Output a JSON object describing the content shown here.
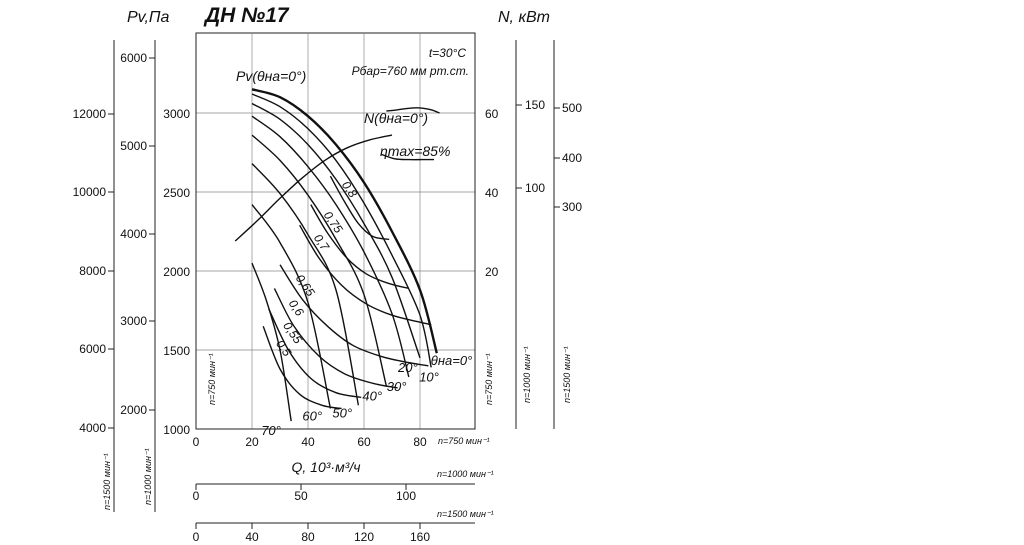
{
  "chart_data": {
    "type": "line",
    "title": "ДН №17",
    "conditions": [
      "t=30°C",
      "Рбар=760 мм рт.ст."
    ],
    "pv_unit_label": "Pv,Па",
    "power_unit_label": "N, кВт",
    "xlabel": "Q, 10³·м³/ч",
    "eta_label": "ηmax=85%",
    "pv_curve_label": "Pv(θна=0°)",
    "n_curve_label": "N(θна=0°)",
    "main_axis": {
      "pv_ticks": [
        "1000",
        "1500",
        "2000",
        "2500",
        "3000"
      ],
      "pv_range": [
        1000,
        3200
      ],
      "n_ticks": [
        "20",
        "40",
        "60"
      ],
      "speed_label": "n=750 мин⁻¹"
    },
    "pv_1000_axis": {
      "ticks": [
        "2000",
        "3000",
        "4000",
        "5000",
        "6000"
      ],
      "speed_label": "n=1000 мин⁻¹"
    },
    "pv_1500_axis": {
      "ticks": [
        "4000",
        "6000",
        "8000",
        "10000",
        "12000"
      ],
      "speed_label": "n=1500 мин⁻¹"
    },
    "n_1000_axis": {
      "ticks": [
        "100",
        "150"
      ],
      "speed_label": "n=1000 мин⁻¹"
    },
    "n_1500_axis": {
      "ticks": [
        "300",
        "400",
        "500"
      ],
      "speed_label": "n=1500 мин⁻¹"
    },
    "q_750_axis": {
      "ticks": [
        "0",
        "20",
        "40",
        "60",
        "80"
      ],
      "range": [
        0,
        100
      ],
      "speed_label": "n=750 мин⁻¹"
    },
    "q_1000_axis": {
      "ticks": [
        "0",
        "50",
        "100"
      ],
      "speed_label": "n=1000 мин⁻¹"
    },
    "q_1500_axis": {
      "ticks": [
        "0",
        "40",
        "80",
        "120",
        "160"
      ],
      "speed_label": "n=1500 мин⁻¹"
    },
    "blade_angle_series": [
      {
        "label": "θна=0°",
        "x": [
          20,
          30,
          40,
          50,
          60,
          70,
          80,
          86
        ],
        "y": [
          3150,
          3100,
          2980,
          2800,
          2560,
          2250,
          1880,
          1480
        ]
      },
      {
        "label": "10°",
        "x": [
          20,
          30,
          40,
          50,
          60,
          70,
          80,
          84
        ],
        "y": [
          3120,
          3040,
          2900,
          2700,
          2430,
          2100,
          1720,
          1390
        ]
      },
      {
        "label": "20°",
        "x": [
          20,
          30,
          40,
          50,
          60,
          70,
          80
        ],
        "y": [
          3060,
          2960,
          2800,
          2580,
          2300,
          1960,
          1450
        ]
      },
      {
        "label": "30°",
        "x": [
          20,
          30,
          40,
          50,
          60,
          70,
          76
        ],
        "y": [
          2980,
          2850,
          2660,
          2420,
          2120,
          1730,
          1330
        ]
      },
      {
        "label": "40°",
        "x": [
          20,
          30,
          40,
          50,
          60,
          68
        ],
        "y": [
          2860,
          2700,
          2480,
          2200,
          1850,
          1270
        ]
      },
      {
        "label": "50°",
        "x": [
          20,
          30,
          40,
          50,
          58
        ],
        "y": [
          2680,
          2490,
          2230,
          1880,
          1150
        ]
      },
      {
        "label": "60°",
        "x": [
          20,
          30,
          40,
          48
        ],
        "y": [
          2420,
          2180,
          1800,
          1130
        ]
      },
      {
        "label": "70°",
        "x": [
          20,
          25,
          30,
          34
        ],
        "y": [
          2050,
          1820,
          1500,
          1050
        ]
      }
    ],
    "efficiency_series": [
      {
        "label": "0,8",
        "x": [
          48,
          53,
          58,
          63,
          69
        ],
        "y": [
          2600,
          2440,
          2300,
          2220,
          2200
        ]
      },
      {
        "label": "0,75",
        "x": [
          41,
          47,
          54,
          61,
          69,
          76
        ],
        "y": [
          2420,
          2240,
          2080,
          1980,
          1920,
          1890
        ]
      },
      {
        "label": "0,7",
        "x": [
          37,
          44,
          52,
          61,
          70,
          79,
          84
        ],
        "y": [
          2290,
          2080,
          1910,
          1790,
          1720,
          1680,
          1660
        ]
      },
      {
        "label": "0,65",
        "x": [
          30,
          38,
          47,
          56,
          66,
          76,
          83
        ],
        "y": [
          2040,
          1820,
          1650,
          1530,
          1460,
          1420,
          1400
        ]
      },
      {
        "label": "0,6",
        "x": [
          28,
          35,
          44,
          53,
          63,
          72
        ],
        "y": [
          1890,
          1650,
          1460,
          1350,
          1290,
          1260
        ]
      },
      {
        "label": "0,55",
        "x": [
          26,
          33,
          41,
          50,
          59
        ],
        "y": [
          1760,
          1500,
          1320,
          1230,
          1200
        ]
      },
      {
        "label": "0,5",
        "x": [
          24,
          30,
          37,
          45,
          52
        ],
        "y": [
          1650,
          1380,
          1220,
          1150,
          1130
        ]
      }
    ],
    "power_series": [
      {
        "label": "N(θна=0°)",
        "x": [
          68,
          72,
          76,
          80,
          84,
          87
        ],
        "n": [
          60.5,
          60.8,
          61.2,
          61.3,
          60.8,
          60
        ]
      }
    ],
    "eta_max_line": {
      "x": [
        66,
        71,
        76,
        81,
        85
      ],
      "y": [
        2740,
        2710,
        2705,
        2705,
        2705
      ]
    },
    "peak_locus": {
      "x": [
        14,
        22,
        30,
        38,
        46,
        54,
        62,
        70
      ],
      "y": [
        2190,
        2320,
        2460,
        2590,
        2700,
        2780,
        2830,
        2860
      ]
    }
  }
}
